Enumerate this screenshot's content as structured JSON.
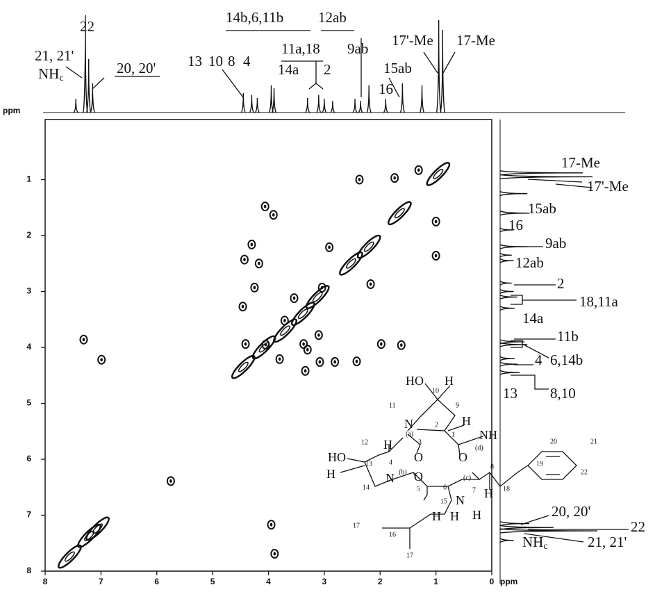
{
  "chart_data": {
    "type": "scatter",
    "xlim": [
      8,
      0
    ],
    "ylim": [
      8,
      0
    ],
    "xticks": [
      8,
      7,
      6,
      5,
      4,
      3,
      2,
      1,
      0
    ],
    "yticks": [
      1,
      2,
      3,
      4,
      5,
      6,
      7,
      8
    ],
    "x_label": "ppm",
    "y_label": "ppm",
    "color": "#111111",
    "cross_peaks": {
      "x": [
        1.31,
        1.74,
        2.37,
        4.06,
        3.91,
        1.0,
        2.91,
        4.3,
        4.17,
        4.43,
        1.0,
        2.17,
        3.04,
        4.25,
        4.46,
        3.54,
        3.71,
        3.37,
        3.1,
        4.05,
        4.41,
        3.8,
        3.3,
        3.08,
        2.81,
        2.42,
        1.98,
        1.62,
        3.34,
        7.31,
        6.99,
        5.75,
        3.89,
        3.95
      ],
      "y": [
        0.83,
        0.97,
        1.0,
        1.48,
        1.63,
        1.75,
        2.21,
        2.16,
        2.5,
        2.43,
        2.36,
        2.87,
        2.93,
        2.93,
        3.27,
        3.12,
        3.52,
        3.94,
        3.78,
        3.95,
        3.94,
        4.21,
        4.04,
        4.26,
        4.26,
        4.25,
        3.94,
        3.96,
        4.42,
        3.86,
        4.22,
        6.39,
        7.69,
        7.17
      ]
    },
    "diagonal_peaks": {
      "x": [
        0.96,
        1.65,
        2.2,
        2.52,
        3.12,
        3.38,
        3.7,
        4.08,
        4.45,
        7.06,
        7.21,
        7.56
      ],
      "y": [
        0.9,
        1.6,
        2.2,
        2.5,
        3.1,
        3.4,
        3.7,
        4.0,
        4.35,
        7.24,
        7.37,
        7.74
      ]
    },
    "projection": {
      "ppm": [
        7.45,
        7.28,
        7.22,
        7.15,
        4.45,
        4.3,
        4.2,
        3.95,
        3.9,
        3.3,
        3.1,
        3.0,
        2.85,
        2.45,
        2.35,
        2.2,
        1.9,
        1.6,
        1.25,
        0.95,
        0.88
      ],
      "intensity": [
        14,
        100,
        55,
        30,
        20,
        18,
        15,
        28,
        25,
        15,
        18,
        14,
        12,
        14,
        12,
        28,
        14,
        30,
        28,
        95,
        85
      ]
    },
    "top_labels": [
      "22",
      "21, 21'",
      {
        "main": "NH",
        "sub": "c"
      },
      "20, 20'",
      "13",
      "10",
      "8",
      "4",
      "14b,6,11b",
      "12ab",
      "11a,18",
      "14a",
      "2",
      "9ab",
      "15ab",
      "16",
      "17'-Me",
      "17-Me"
    ],
    "right_labels": [
      "17-Me",
      "17'-Me",
      "15ab",
      "16",
      "9ab",
      "12ab",
      "2",
      "18,11a",
      "14a",
      "11b",
      "6,14b",
      "4",
      "13",
      "8,10",
      "20, 20'",
      "22",
      {
        "main": "NH",
        "sub": "c"
      },
      "21, 21'"
    ],
    "structure_labels": [
      "HO",
      "H",
      "10",
      "11",
      "9",
      "N",
      "(a)",
      "2",
      "H",
      "1",
      "H",
      "4",
      "3",
      "12",
      "NH",
      "(d)",
      "20",
      "21",
      "19",
      "22",
      "HO",
      "13",
      "O",
      "O",
      "H",
      "(b)",
      "N",
      "O",
      "(c)",
      "7",
      "8",
      "H",
      "18",
      "14",
      "5",
      "6",
      "N",
      "H",
      "15",
      "H",
      "H",
      "17",
      "16",
      "17"
    ]
  }
}
